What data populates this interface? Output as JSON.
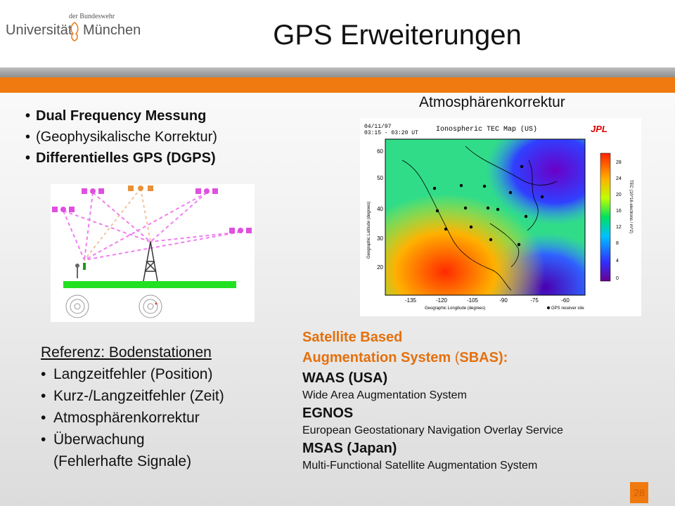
{
  "header": {
    "logo_small": "der Bundeswehr",
    "logo_uni": "Universität",
    "logo_city": "München",
    "title": "GPS Erweiterungen"
  },
  "top_bullets": [
    "Dual Frequency Messung",
    "(Geophysikalische Korrektur)",
    "Differentielles GPS (DGPS)"
  ],
  "atmo_caption": "Atmosphärenkorrektur",
  "map": {
    "date": "04/11/97",
    "time": "03:15 - 03:20 UT",
    "title": "Ionospheric TEC Map (US)",
    "logo": "JPL",
    "ylabel": "Geographic Latitude (degrees)",
    "xlabel": "Geographic Longitude (degrees)",
    "legend_text": "GPS receiver site",
    "colorbar_label": "TEC (10^16 electrons / m^2)",
    "x_ticks": [
      "-135",
      "-120",
      "-105",
      "-90",
      "-75",
      "-60"
    ],
    "y_ticks": [
      "60",
      "50",
      "40",
      "30",
      "20"
    ],
    "cbar_ticks": [
      "28",
      "24",
      "20",
      "16",
      "12",
      "8",
      "4",
      "0"
    ]
  },
  "reference": {
    "title": "Referenz: Bodenstationen",
    "items": [
      "Langzeitfehler (Position)",
      "Kurz-/Langzeitfehler (Zeit)",
      "Atmosphärenkorrektur",
      "Überwachung"
    ],
    "last_item_cont": "(Fehlerhafte Signale)"
  },
  "sbas": {
    "heading1": "Satellite Based",
    "heading2_a": "Augmentation System ",
    "heading2_paren": "(",
    "heading2_b": "SBAS):",
    "waas": "WAAS (USA)",
    "waas_desc": "Wide Area Augmentation System",
    "egnos": "EGNOS",
    "egnos_desc": "European Geostationary Navigation Overlay Service",
    "msas": "MSAS (Japan)",
    "msas_desc": "Multi-Functional Satellite Augmentation System"
  },
  "page_number": "28"
}
